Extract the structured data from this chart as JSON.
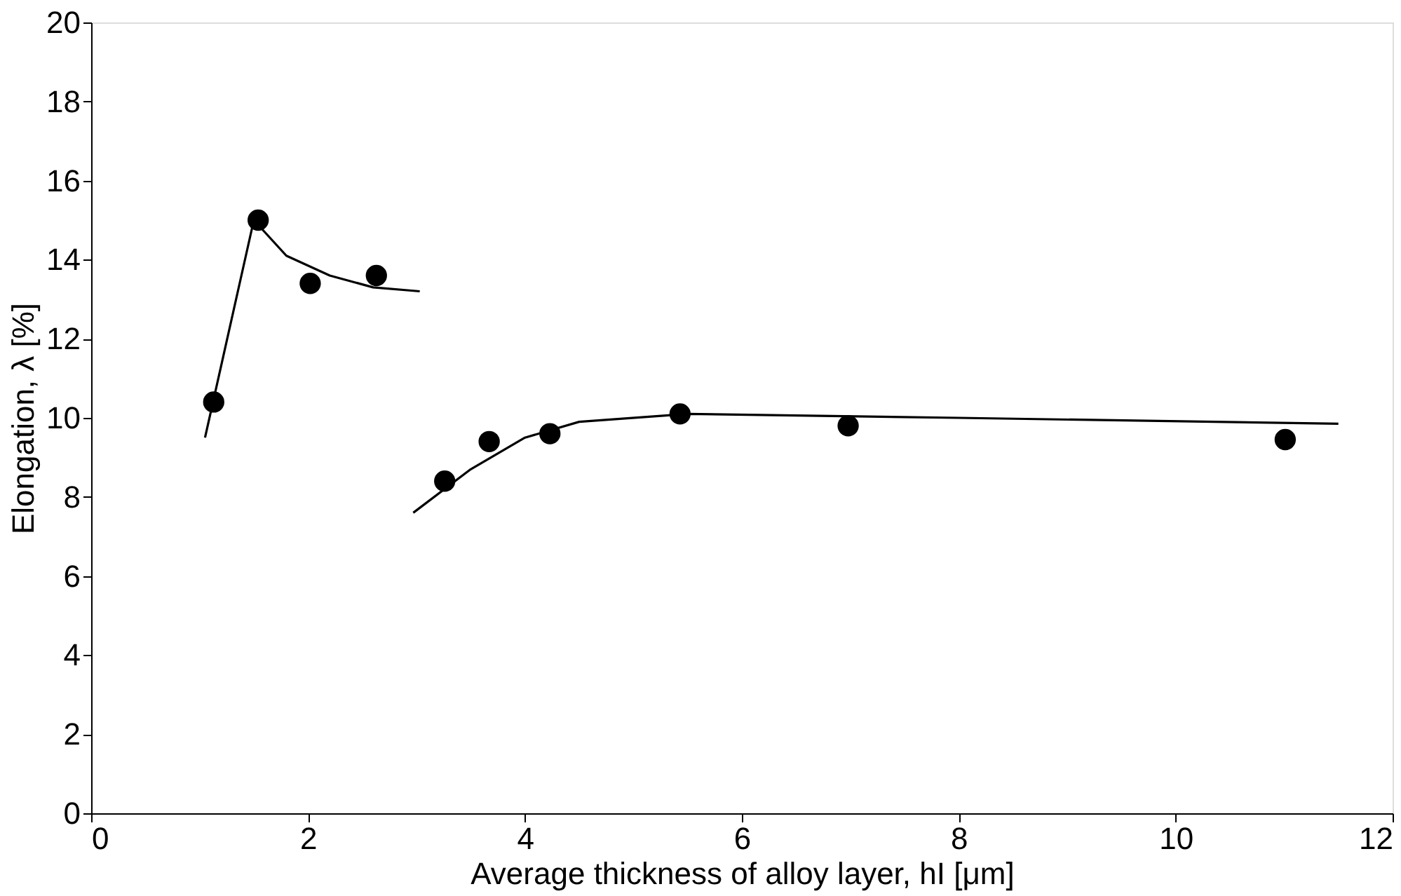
{
  "chart_data": {
    "type": "scatter",
    "xlabel": "Average thickness of alloy layer, hI [μm]",
    "ylabel": "Elongation, λ [%]",
    "xlim": [
      0,
      12
    ],
    "xticks": [
      0,
      2,
      4,
      6,
      8,
      10,
      12
    ],
    "ylim": [
      0,
      20
    ],
    "yticks": [
      0,
      2,
      4,
      6,
      8,
      10,
      12,
      14,
      16,
      18,
      20
    ],
    "grid": false,
    "series": [
      {
        "color": "#000000",
        "marker": "circle",
        "x": [
          1.13,
          1.54,
          2.02,
          2.63,
          3.26,
          3.67,
          4.23,
          5.43,
          6.98,
          11.01
        ],
        "values": [
          10.4,
          15.0,
          13.4,
          13.6,
          8.4,
          9.4,
          9.6,
          10.1,
          9.8,
          9.45
        ]
      },
      {
        "type": "line",
        "color": "#000000",
        "marker": "none",
        "line_style": "solid",
        "x": [
          1.05,
          1.5,
          1.8,
          2.2,
          2.6,
          3.03
        ],
        "values": [
          9.5,
          15.0,
          14.1,
          13.6,
          13.3,
          13.2
        ]
      },
      {
        "type": "line",
        "color": "#000000",
        "marker": "none",
        "line_style": "solid",
        "x": [
          2.97,
          3.5,
          4.0,
          4.5,
          5.5,
          8.0,
          11.5
        ],
        "values": [
          7.6,
          8.7,
          9.5,
          9.9,
          10.1,
          10.0,
          9.85
        ]
      }
    ]
  }
}
